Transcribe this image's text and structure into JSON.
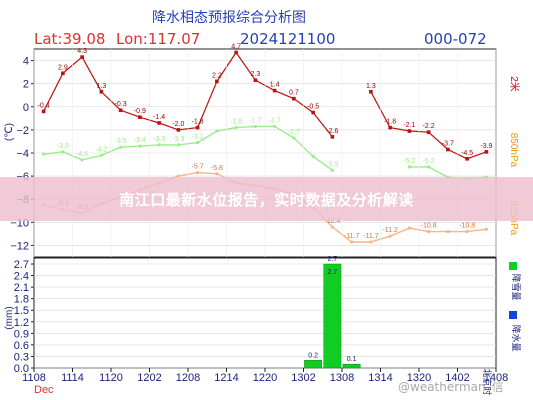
{
  "header": {
    "title": "降水相态预报综合分析图",
    "lat": "Lat:39.08",
    "lon": "Lon:117.07",
    "datetime": "2024121100",
    "code": "000-072"
  },
  "banner": {
    "text": "南江口最新水位报告，实时数据及分析解读"
  },
  "watermark": {
    "text": "@weatherman_信"
  },
  "colors": {
    "temp2m": "#bb1111",
    "t850": "#99ee88",
    "t850_right": "#ee9900",
    "t925": "#ffb380",
    "axis_text": "#1a237e",
    "header_red": "#e03030",
    "header_blue": "#2840b8",
    "rain": "#11cc22",
    "snow": "#1144dd",
    "banner_bg": "#ecbecd"
  },
  "side_labels": {
    "left_unit": "(℃)",
    "left_unit_bottom": "(mm)",
    "right_top": "2米",
    "right_mid": "850hPa",
    "right_bottom": "925hPa",
    "legend_rain": "降雪量",
    "legend_snow": "降水量",
    "time_label": "北京时"
  },
  "chart_data": [
    {
      "type": "line",
      "title": "降水相态预报综合分析图",
      "x_ticks": [
        "1108",
        "1114",
        "1120",
        "1202",
        "1208",
        "1214",
        "1220",
        "1302",
        "1308",
        "1314",
        "1320",
        "1402",
        "1408"
      ],
      "x_sub_label": "Dec",
      "ylim": [
        -13,
        5
      ],
      "y_ticks": [
        4,
        2,
        0,
        -2,
        -4,
        -6,
        -8,
        -10,
        -12
      ],
      "series": [
        {
          "key": "temp2m",
          "values": [
            -0.4,
            2.9,
            4.3,
            1.3,
            -0.3,
            -0.9,
            -1.4,
            -2.0,
            -1.8,
            2.2,
            4.7,
            2.3,
            1.4,
            0.7,
            -0.5,
            -2.6,
            null,
            1.3,
            -1.8,
            -2.1,
            -2.2,
            -3.7,
            -4.5,
            -3.9
          ],
          "labels": [
            "-0.4",
            "2.9",
            "4.3",
            "1.3",
            "-0.3",
            "-0.9",
            "-1.4",
            "-2.0",
            "-1.8",
            "2.2",
            "4.7",
            "2.3",
            "1.4",
            "0.7",
            "-0.5",
            "-2.6",
            "",
            "1.3",
            "-1.8",
            "-2.1",
            "-2.2",
            "-3.7",
            "-4.5",
            "-3.9"
          ]
        },
        {
          "key": "t850",
          "values": [
            -4.1,
            -3.9,
            -4.6,
            -4.2,
            -3.5,
            -3.4,
            -3.3,
            -3.3,
            -3.1,
            -2.1,
            -1.8,
            -1.7,
            -1.7,
            -2.7,
            -4.3,
            -5.5,
            null,
            null,
            null,
            -5.2,
            -5.2,
            -6.1,
            -6.2,
            -6.1
          ],
          "labels": [
            "",
            "-3.9",
            "-4.6",
            "-4.2",
            "-3.5",
            "-3.4",
            "-3.3",
            "-3.3",
            "-3.1",
            "",
            "-1.8",
            "-1.7",
            "-1.7",
            "-2.7",
            "",
            "-5.5",
            "",
            "",
            "",
            "-5.2",
            "-5.2",
            "",
            "",
            ""
          ]
        },
        {
          "key": "t925",
          "values": [
            -8.5,
            -8.9,
            -9.2,
            -8.4,
            -7.8,
            -7.2,
            -6.6,
            -6.0,
            -5.7,
            -5.8,
            -6.6,
            -6.8,
            -7.1,
            -7.6,
            -8.7,
            -10.4,
            -11.7,
            -11.7,
            -11.2,
            -10.5,
            -10.8,
            -10.8,
            -10.8,
            -10.6
          ],
          "labels": [
            "",
            "-8.9",
            "-9.2",
            "",
            "",
            "",
            "",
            "",
            "-5.7",
            "-5.8",
            "",
            "",
            "",
            "",
            "",
            "-10.4",
            "-11.7",
            "-11.7",
            "-11.2",
            "",
            "-10.8",
            "",
            "-10.8",
            ""
          ]
        }
      ]
    },
    {
      "type": "bar",
      "ylim": [
        0,
        2.7
      ],
      "y_ticks": [
        2.7,
        2.4,
        2.1,
        1.8,
        1.5,
        1.2,
        0.9,
        0.6,
        0.3,
        0.0
      ],
      "series": [
        {
          "key": "snowfall",
          "values": [
            0,
            0,
            0,
            0,
            0,
            0,
            0,
            0,
            0,
            0,
            0,
            0,
            0,
            0,
            0.2,
            2.7,
            0.1,
            0,
            0,
            0,
            0,
            0,
            0,
            0
          ],
          "labels": [
            "",
            "",
            "",
            "",
            "",
            "",
            "",
            "",
            "",
            "",
            "",
            "",
            "",
            "",
            "0.2",
            "2.7",
            "0.1",
            "",
            "",
            "",
            "",
            "",
            "",
            ""
          ]
        }
      ],
      "bar_inner_label": "2.7"
    }
  ]
}
